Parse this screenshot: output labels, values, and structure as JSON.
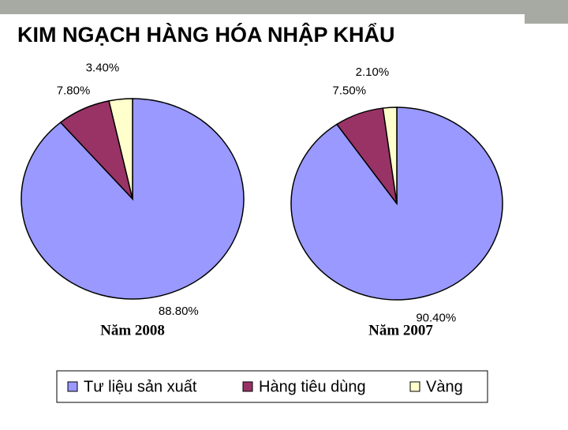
{
  "title": "KIM NGẠCH HÀNG HÓA NHẬP KHẨU",
  "chart_data": [
    {
      "type": "pie",
      "title": "Năm 2008",
      "categories": [
        "Tư liệu sản xuất",
        "Hàng tiêu dùng",
        "Vàng"
      ],
      "values": [
        88.8,
        7.8,
        3.4
      ],
      "value_labels": [
        "88.80%",
        "7.80%",
        "3.40%"
      ],
      "colors": [
        "#9999ff",
        "#993366",
        "#ffffcc"
      ]
    },
    {
      "type": "pie",
      "title": "Năm 2007",
      "categories": [
        "Tư liệu sản xuất",
        "Hàng tiêu dùng",
        "Vàng"
      ],
      "values": [
        90.4,
        7.5,
        2.1
      ],
      "value_labels": [
        "90.40%",
        "7.50%",
        "2.10%"
      ],
      "colors": [
        "#9999ff",
        "#993366",
        "#ffffcc"
      ]
    }
  ]
}
